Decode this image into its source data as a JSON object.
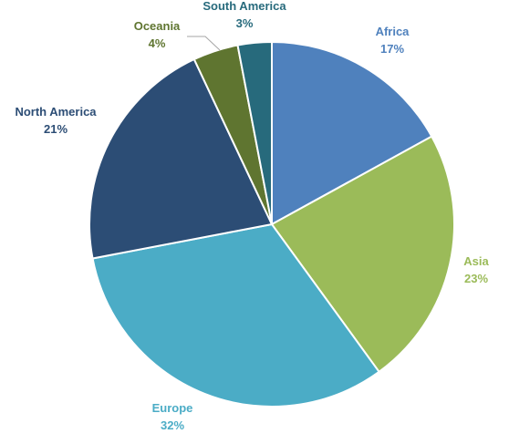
{
  "chart_data": {
    "type": "pie",
    "title": "",
    "legend": "none",
    "start_angle_deg": 0,
    "direction": "clockwise",
    "slices": [
      {
        "name": "Africa",
        "value": 17,
        "label": "17%",
        "color": "#4f81bd"
      },
      {
        "name": "Asia",
        "value": 23,
        "label": "23%",
        "color": "#9bbb59"
      },
      {
        "name": "Europe",
        "value": 32,
        "label": "32%",
        "color": "#4bacc6"
      },
      {
        "name": "North America",
        "value": 21,
        "label": "21%",
        "color": "#2c4d75"
      },
      {
        "name": "Oceania",
        "value": 4,
        "label": "4%",
        "color": "#5f7530"
      },
      {
        "name": "South America",
        "value": 3,
        "label": "3%",
        "color": "#276a7c"
      }
    ]
  }
}
